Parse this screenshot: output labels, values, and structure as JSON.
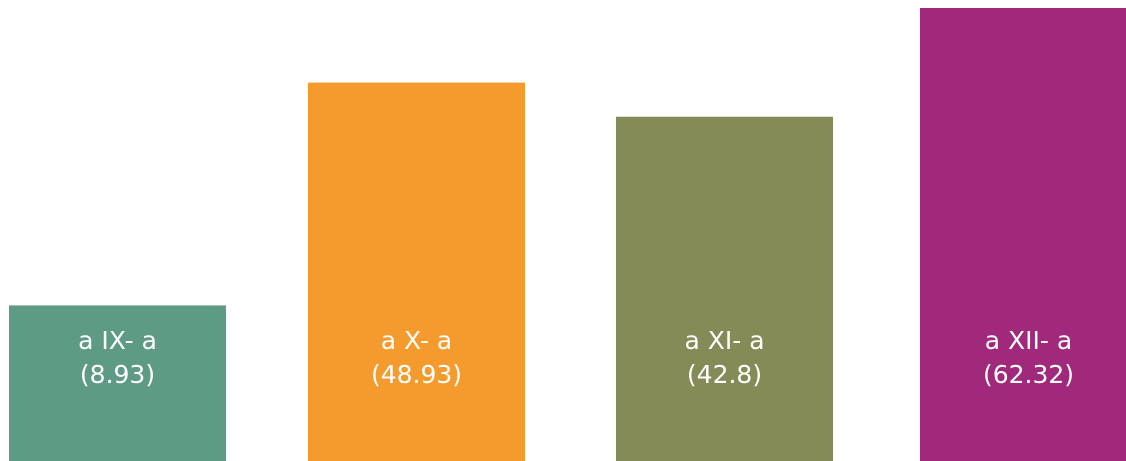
{
  "chart_data": {
    "type": "bar",
    "categories": [
      "a IX- a",
      "a X- a",
      "a XI- a",
      "a XII- a"
    ],
    "values": [
      8.93,
      48.93,
      42.8,
      62.32
    ],
    "data_labels": [
      "(8.93)",
      "(48.93)",
      "(42.8)",
      "(62.32)"
    ],
    "colors": [
      "#5e9b85",
      "#f59b2e",
      "#848b56",
      "#a0297c"
    ],
    "title": "",
    "xlabel": "",
    "ylabel": "",
    "grid": false,
    "legend": "none",
    "ylim": [
      -19,
      62.32
    ]
  }
}
